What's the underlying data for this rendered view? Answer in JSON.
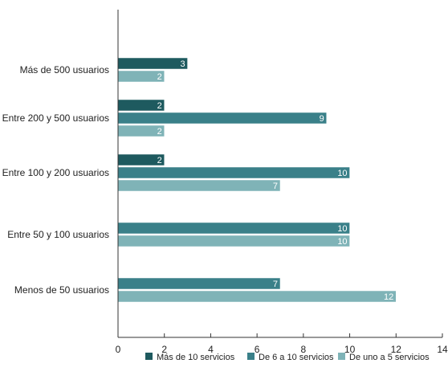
{
  "chart_data": {
    "type": "bar",
    "orientation": "horizontal",
    "categories": [
      "Más de 500 usuarios",
      "Entre 200 y 500 usuarios",
      "Entre 100 y 200 usuarios",
      "Entre 50 y 100 usuarios",
      "Menos de 50 usuarios"
    ],
    "series": [
      {
        "name": "Más de 10 servicios",
        "color": "#1e5a5f",
        "values": [
          3,
          2,
          2,
          null,
          null
        ]
      },
      {
        "name": "De 6 a 10 servicios",
        "color": "#3a8089",
        "values": [
          null,
          9,
          10,
          10,
          7
        ]
      },
      {
        "name": "De uno a 5 servicios",
        "color": "#7fb3b7",
        "values": [
          2,
          2,
          7,
          10,
          12
        ]
      }
    ],
    "xlim": [
      0,
      14
    ],
    "xticks": [
      "0",
      "2",
      "4",
      "6",
      "8",
      "10",
      "12",
      "14"
    ],
    "title": "",
    "xlabel": "",
    "ylabel": "",
    "grid": false,
    "legend_position": "bottom",
    "data_labels": true
  }
}
